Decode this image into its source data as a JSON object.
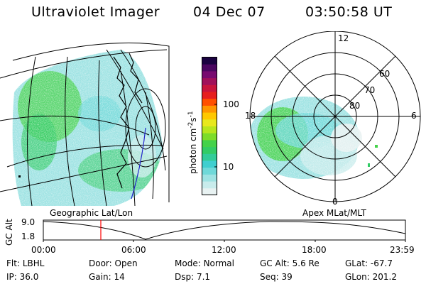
{
  "header": {
    "instrument": "Ultraviolet Imager",
    "date": "04 Dec 07",
    "time": "03:50:58 UT"
  },
  "colorbar": {
    "unit_label": "photon cm⁻²s⁻¹",
    "unit_base": "photon cm",
    "unit_exp1": "-2",
    "unit_mid": "s",
    "unit_exp2": "-1",
    "tick_labels": [
      "100",
      "10"
    ],
    "colors": [
      "#e8f2f2",
      "#c8ecec",
      "#9ee3e3",
      "#6fd9d9",
      "#3fcfcf",
      "#33cc99",
      "#33cc66",
      "#44d24a",
      "#7ddc2a",
      "#b8e61e",
      "#e8e81e",
      "#ffc800",
      "#ff9600",
      "#ff5000",
      "#e61e1e",
      "#c8143c",
      "#a0105a",
      "#780a70",
      "#4a0660",
      "#1a0240"
    ]
  },
  "left_panel": {
    "label": "Geographic Lat/Lon"
  },
  "right_panel": {
    "label": "Apex MLat/MLT",
    "mlt_labels": [
      "12",
      "18",
      "6",
      "0"
    ],
    "mlat_labels": [
      "60",
      "70",
      "80"
    ]
  },
  "altitude_plot": {
    "ylabel": "GC Alt",
    "y_ticks": [
      "9.0",
      "1.8"
    ],
    "x_ticks": [
      "00:00",
      "06:00",
      "12:00",
      "18:00",
      "23:59"
    ],
    "current_time_marker": "03:50:58"
  },
  "status": {
    "row1": [
      {
        "label": "Flt:",
        "value": "LBHL"
      },
      {
        "label": "Door:",
        "value": "Open"
      },
      {
        "label": "Mode:",
        "value": "Normal"
      },
      {
        "label": "GC Alt:",
        "value": "5.6 Re"
      },
      {
        "label": "GLat:",
        "value": "-67.7"
      }
    ],
    "row2": [
      {
        "label": "IP:",
        "value": "36.0"
      },
      {
        "label": "Gain:",
        "value": "14"
      },
      {
        "label": "Dsp:",
        "value": "7.1"
      },
      {
        "label": "Seq:",
        "value": "39"
      },
      {
        "label": "GLon:",
        "value": "201.2"
      }
    ]
  }
}
